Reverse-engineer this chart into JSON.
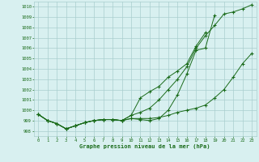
{
  "x": [
    0,
    1,
    2,
    3,
    4,
    5,
    6,
    7,
    8,
    9,
    10,
    11,
    12,
    13,
    14,
    15,
    16,
    17,
    18,
    19,
    20,
    21,
    22,
    23
  ],
  "series1": [
    999.6,
    999.0,
    998.7,
    998.2,
    998.5,
    998.8,
    999.0,
    999.1,
    999.1,
    999.0,
    999.2,
    999.1,
    999.0,
    999.2,
    1000.0,
    1001.5,
    1003.5,
    1005.8,
    1006.0,
    1009.2,
    null,
    null,
    null,
    null
  ],
  "series2": [
    999.6,
    999.0,
    998.7,
    998.2,
    998.5,
    998.8,
    999.0,
    999.1,
    999.1,
    999.0,
    999.5,
    1001.2,
    1001.8,
    1002.3,
    1003.2,
    1003.8,
    1004.5,
    1006.2,
    1007.5,
    null,
    null,
    null,
    null,
    null
  ],
  "series3": [
    999.6,
    999.0,
    998.7,
    998.2,
    998.5,
    998.8,
    999.0,
    999.1,
    999.1,
    999.0,
    999.2,
    999.2,
    999.2,
    999.3,
    999.5,
    999.8,
    1000.0,
    1000.2,
    1000.5,
    1001.2,
    1002.0,
    1003.2,
    1004.5,
    1005.5
  ],
  "series4": [
    999.6,
    999.0,
    998.7,
    998.2,
    998.5,
    998.8,
    999.0,
    999.1,
    999.1,
    999.0,
    999.5,
    999.8,
    1000.2,
    1001.0,
    1002.0,
    1003.0,
    1004.2,
    1006.0,
    1007.2,
    1008.2,
    1009.3,
    1009.5,
    1009.8,
    1010.2
  ],
  "line_color": "#1a6b1a",
  "bg_color": "#d8f0f0",
  "grid_color": "#aacece",
  "ylabel_values": [
    998,
    999,
    1000,
    1001,
    1002,
    1003,
    1004,
    1005,
    1006,
    1007,
    1008,
    1009,
    1010
  ],
  "ylim": [
    997.5,
    1010.5
  ],
  "xlim": [
    -0.5,
    23.5
  ],
  "xlabel": "Graphe pression niveau de la mer (hPa)",
  "title_color": "#1a6b1a",
  "font_family": "monospace"
}
